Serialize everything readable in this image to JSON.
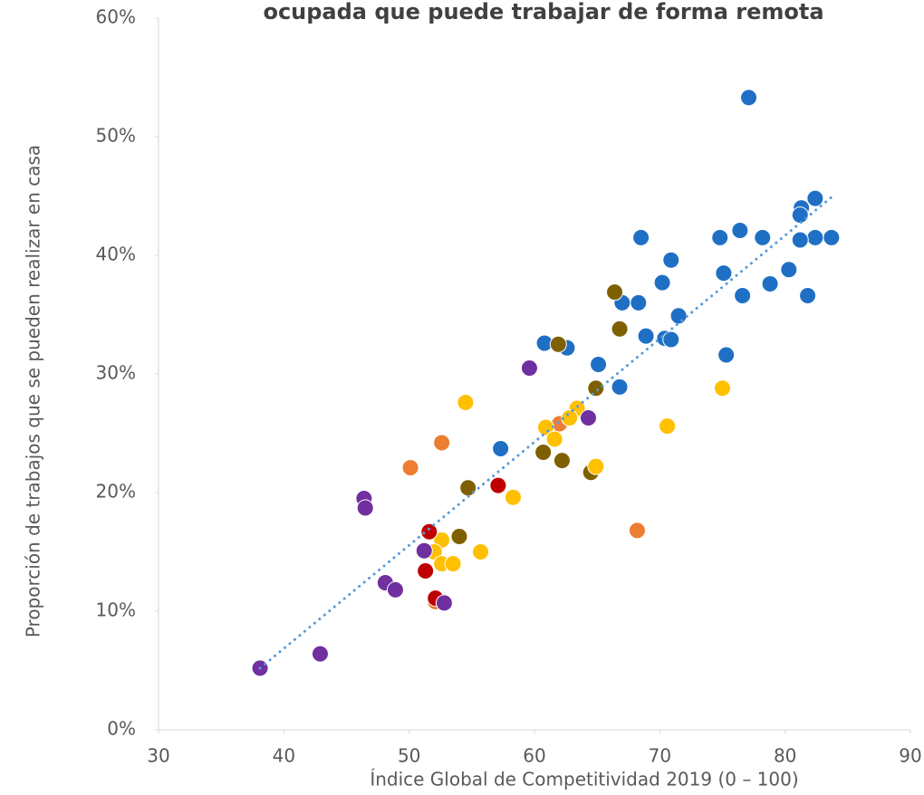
{
  "chart_data": {
    "type": "scatter",
    "title": "ocupada que puede trabajar de forma remota",
    "x_label": "Índice Global de Competitividad 2019 (0 – 100)",
    "y_label": "Proporción de trabajos que se pueden realizar en casa",
    "xlim": [
      30,
      90
    ],
    "xticks": [
      30,
      40,
      50,
      60,
      70,
      80,
      90
    ],
    "ylim": [
      0,
      60
    ],
    "yticks": [
      {
        "value": 0,
        "label": "0%"
      },
      {
        "value": 10,
        "label": "10%"
      },
      {
        "value": 20,
        "label": "20%"
      },
      {
        "value": 30,
        "label": "30%"
      },
      {
        "value": 40,
        "label": "40%"
      },
      {
        "value": 50,
        "label": "50%"
      },
      {
        "value": 60,
        "label": "60%"
      }
    ],
    "series": [
      {
        "color": "#1f6fc5",
        "x": [
          77.1,
          82.4,
          81.3,
          81.2,
          82.4,
          83.7,
          81.2,
          78.2,
          76.4,
          74.8,
          68.5,
          70.9,
          80.3,
          75.1,
          70.2,
          78.8,
          76.6,
          81.8,
          67.0,
          68.3,
          71.5,
          68.9,
          70.4,
          70.9,
          60.8,
          62.6,
          75.3,
          65.1,
          66.8,
          57.3
        ],
        "values": [
          53.3,
          44.8,
          44.0,
          43.4,
          41.5,
          41.5,
          41.3,
          41.5,
          42.1,
          41.5,
          41.5,
          39.6,
          38.8,
          38.5,
          37.7,
          37.6,
          36.6,
          36.6,
          36.0,
          36.0,
          34.9,
          33.2,
          33.0,
          32.9,
          32.6,
          32.2,
          31.6,
          30.8,
          28.9,
          23.7
        ]
      },
      {
        "color": "#7f6000",
        "x": [
          66.4,
          66.8,
          61.9,
          64.9,
          60.7,
          62.2,
          64.5,
          54.7,
          54.0
        ],
        "values": [
          36.9,
          33.8,
          32.5,
          28.8,
          23.4,
          22.7,
          21.7,
          20.4,
          16.3
        ]
      },
      {
        "color": "#ed7d31",
        "x": [
          50.1,
          52.6,
          62.0,
          68.2,
          52.1
        ],
        "values": [
          22.1,
          24.2,
          25.8,
          16.8,
          10.8
        ]
      },
      {
        "color": "#ffc000",
        "x": [
          54.5,
          75.0,
          63.4,
          62.8,
          70.6,
          60.9,
          61.6,
          64.9,
          58.3,
          52.6,
          52.0,
          55.7,
          52.6,
          53.5
        ],
        "values": [
          27.6,
          28.8,
          27.1,
          26.3,
          25.6,
          25.5,
          24.5,
          22.2,
          19.6,
          16.0,
          15.0,
          15.0,
          14.0,
          14.0
        ]
      },
      {
        "color": "#c00000",
        "x": [
          57.1,
          51.6,
          51.3,
          52.1
        ],
        "values": [
          20.6,
          16.7,
          13.4,
          11.1
        ]
      },
      {
        "color": "#7030a0",
        "x": [
          59.6,
          64.3,
          46.4,
          46.5,
          51.2,
          48.1,
          48.9,
          52.8,
          42.9,
          38.1
        ],
        "values": [
          30.5,
          26.3,
          19.5,
          18.7,
          15.1,
          12.4,
          11.8,
          10.7,
          6.4,
          5.2
        ]
      }
    ],
    "trendline": {
      "color": "#5b9bd5",
      "x": [
        38.1,
        83.7
      ],
      "values": [
        5.2,
        44.9
      ]
    }
  }
}
